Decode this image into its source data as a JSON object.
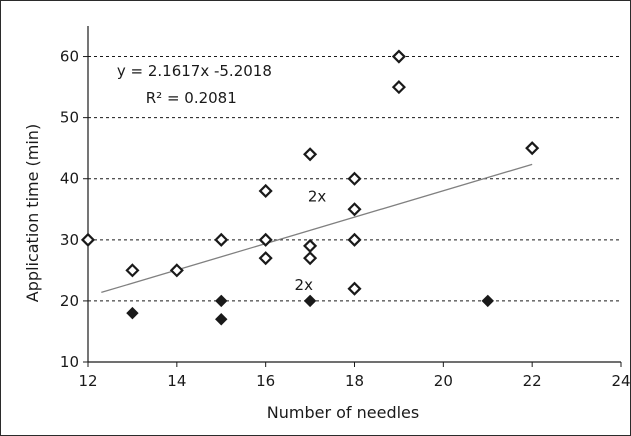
{
  "chart_data": {
    "type": "scatter",
    "title": "",
    "xlabel": "Number of needles",
    "ylabel": "Application time (min)",
    "xlim": [
      12,
      24
    ],
    "ylim": [
      10,
      65
    ],
    "x_ticks": [
      12,
      14,
      16,
      18,
      20,
      22,
      24
    ],
    "y_ticks": [
      10,
      20,
      30,
      40,
      50,
      60
    ],
    "grid": "horizontal dashed",
    "series": [
      {
        "marker": "open-diamond",
        "color": "#1a1a1a",
        "points": [
          {
            "x": 12,
            "y": 30
          },
          {
            "x": 13,
            "y": 25
          },
          {
            "x": 14,
            "y": 25
          },
          {
            "x": 15,
            "y": 30
          },
          {
            "x": 16,
            "y": 38
          },
          {
            "x": 16,
            "y": 30
          },
          {
            "x": 16,
            "y": 27
          },
          {
            "x": 17,
            "y": 44
          },
          {
            "x": 17,
            "y": 29
          },
          {
            "x": 17,
            "y": 27
          },
          {
            "x": 18,
            "y": 40
          },
          {
            "x": 18,
            "y": 35
          },
          {
            "x": 18,
            "y": 30
          },
          {
            "x": 18,
            "y": 22
          },
          {
            "x": 19,
            "y": 60
          },
          {
            "x": 19,
            "y": 55
          },
          {
            "x": 22,
            "y": 45
          }
        ]
      },
      {
        "marker": "filled-diamond",
        "color": "#1a1a1a",
        "points": [
          {
            "x": 13,
            "y": 18
          },
          {
            "x": 15,
            "y": 20
          },
          {
            "x": 15,
            "y": 17
          },
          {
            "x": 17,
            "y": 20
          },
          {
            "x": 21,
            "y": 20
          }
        ]
      }
    ],
    "trendline": {
      "slope": 2.1617,
      "intercept": -5.2018,
      "x_range": [
        12.3,
        22
      ],
      "color": "#808080"
    },
    "annotations": [
      {
        "text": "y = 2.1617x -5.2018",
        "x": 12.65,
        "y": 56.8
      },
      {
        "text": "R² = 0.2081",
        "x": 13.3,
        "y": 52.4
      },
      {
        "text": "2x",
        "x": 16.95,
        "y": 36.3
      },
      {
        "text": "2x",
        "x": 16.65,
        "y": 21.8
      }
    ]
  }
}
